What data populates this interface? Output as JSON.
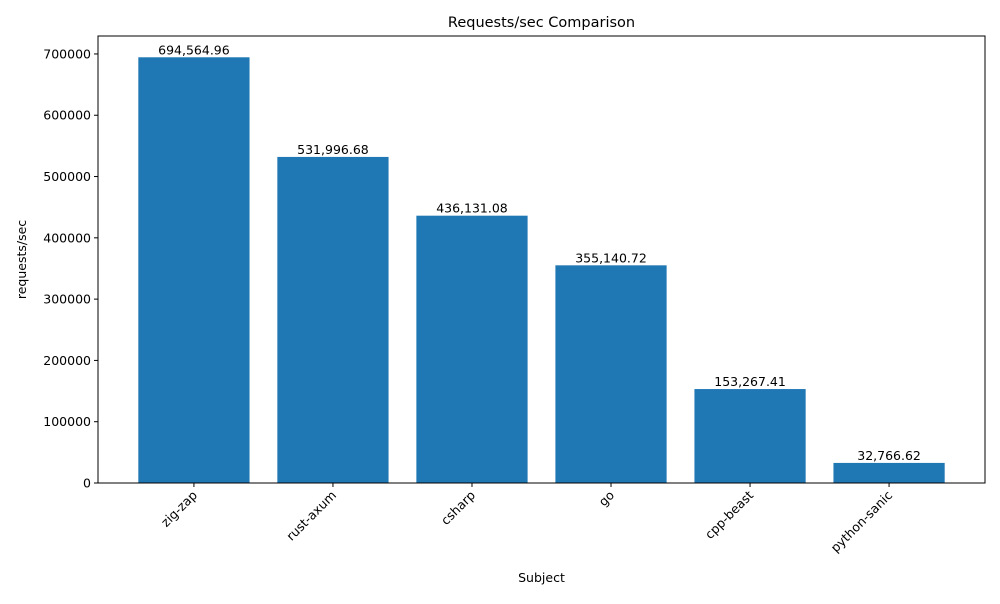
{
  "chart_data": {
    "type": "bar",
    "title": "Requests/sec Comparison",
    "xlabel": "Subject",
    "ylabel": "requests/sec",
    "categories": [
      "zig-zap",
      "rust-axum",
      "csharp",
      "go",
      "cpp-beast",
      "python-sanic"
    ],
    "values": [
      694564.96,
      531996.68,
      436131.08,
      355140.72,
      153267.41,
      32766.62
    ],
    "data_labels": [
      "694,564.96",
      "531,996.68",
      "436,131.08",
      "355,140.72",
      "153,267.41",
      "32,766.62"
    ],
    "yticks": [
      0,
      100000,
      200000,
      300000,
      400000,
      500000,
      600000,
      700000
    ],
    "ytick_labels": [
      "0",
      "100000",
      "200000",
      "300000",
      "400000",
      "500000",
      "600000",
      "700000"
    ],
    "ylim": [
      0,
      729293
    ],
    "xtick_rotation": 45,
    "grid": false,
    "bar_color": "#1f77b4"
  }
}
